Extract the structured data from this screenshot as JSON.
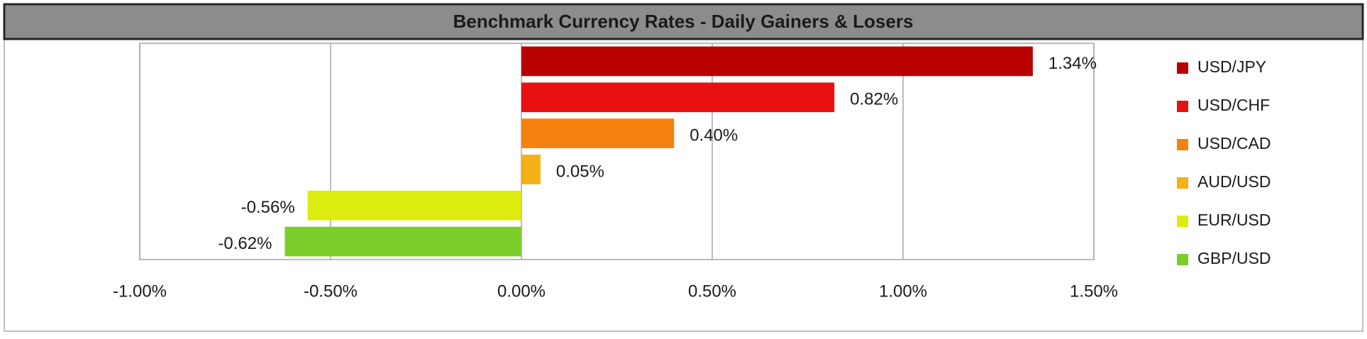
{
  "chart_data": {
    "type": "bar",
    "orientation": "horizontal",
    "title": "Benchmark Currency Rates - Daily Gainers & Losers",
    "categories": [
      "USD/JPY",
      "USD/CHF",
      "USD/CAD",
      "AUD/USD",
      "EUR/USD",
      "GBP/USD"
    ],
    "values": [
      1.34,
      0.82,
      0.4,
      0.05,
      -0.56,
      -0.62
    ],
    "value_labels": [
      "1.34%",
      "0.82%",
      "0.40%",
      "0.05%",
      "-0.56%",
      "-0.62%"
    ],
    "colors": [
      "#b80000",
      "#e81010",
      "#f5820f",
      "#f5b015",
      "#dcec10",
      "#7ccf2a"
    ],
    "xlim": [
      -1.0,
      1.5
    ],
    "xticks": [
      {
        "value": -1.0,
        "label": "-1.00%"
      },
      {
        "value": -0.5,
        "label": "-0.50%"
      },
      {
        "value": 0,
        "label": "0.00%"
      },
      {
        "value": 0.5,
        "label": "0.50%"
      },
      {
        "value": 1.0,
        "label": "1.00%"
      },
      {
        "value": 1.5,
        "label": "1.50%"
      }
    ],
    "grid": true,
    "legend": "right"
  }
}
